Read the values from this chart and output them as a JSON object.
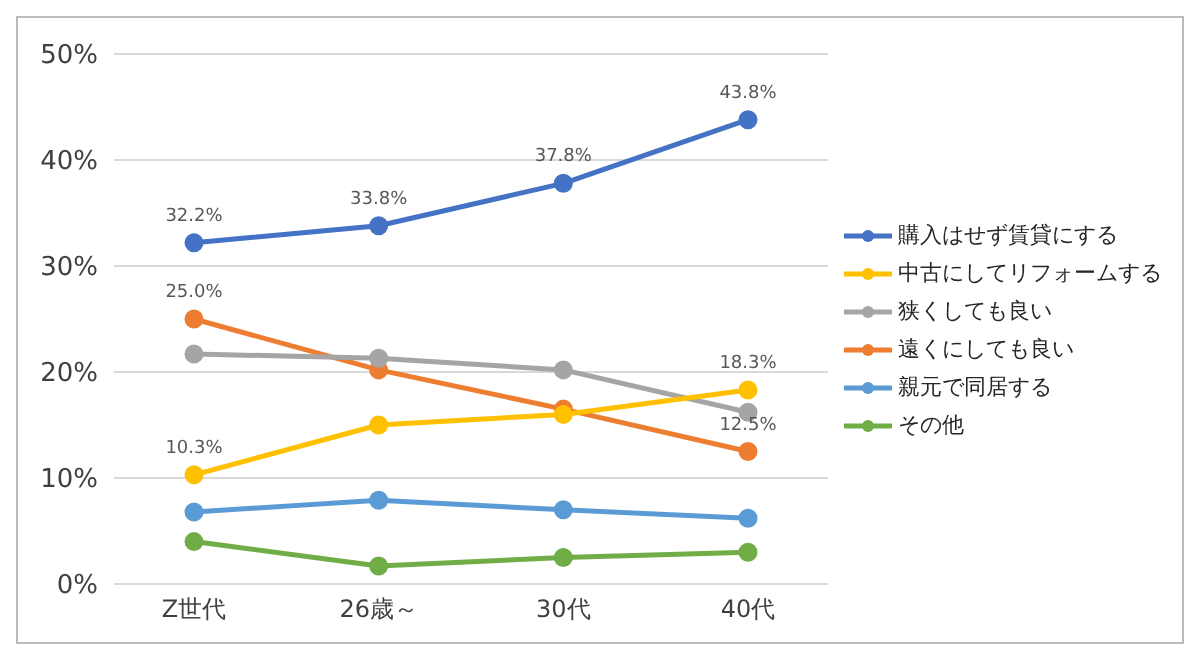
{
  "chart_data": {
    "type": "line",
    "categories": [
      "Z世代",
      "26歳～",
      "30代",
      "40代"
    ],
    "ylim": [
      0,
      50
    ],
    "yticks": [
      {
        "value": 0,
        "label": "0%"
      },
      {
        "value": 10,
        "label": "10%"
      },
      {
        "value": 20,
        "label": "20%"
      },
      {
        "value": 30,
        "label": "30%"
      },
      {
        "value": 40,
        "label": "40%"
      },
      {
        "value": 50,
        "label": "50%"
      }
    ],
    "grid": "y",
    "legend": "right",
    "marker": "circle",
    "series": [
      {
        "name": "購入はせず賃貸にする",
        "color": "#4472c4",
        "values": [
          32.2,
          33.8,
          37.8,
          43.8
        ],
        "value_labels": [
          "32.2%",
          "33.8%",
          "37.8%",
          "43.8%"
        ]
      },
      {
        "name": "中古にしてリフォームする",
        "color": "#ffc000",
        "values": [
          10.3,
          15.0,
          16.0,
          18.3
        ],
        "value_labels": [
          "10.3%",
          null,
          null,
          "18.3%"
        ]
      },
      {
        "name": "狭くしても良い",
        "color": "#a5a5a5",
        "values": [
          21.7,
          21.3,
          20.2,
          16.2
        ]
      },
      {
        "name": "遠くにしても良い",
        "color": "#ed7d31",
        "values": [
          25.0,
          20.2,
          16.5,
          12.5
        ],
        "value_labels": [
          "25.0%",
          null,
          null,
          "12.5%"
        ]
      },
      {
        "name": "親元で同居する",
        "color": "#5b9bd5",
        "values": [
          6.8,
          7.9,
          7.0,
          6.2
        ]
      },
      {
        "name": "その他",
        "color": "#70ad47",
        "values": [
          4.0,
          1.7,
          2.5,
          3.0
        ]
      }
    ]
  }
}
